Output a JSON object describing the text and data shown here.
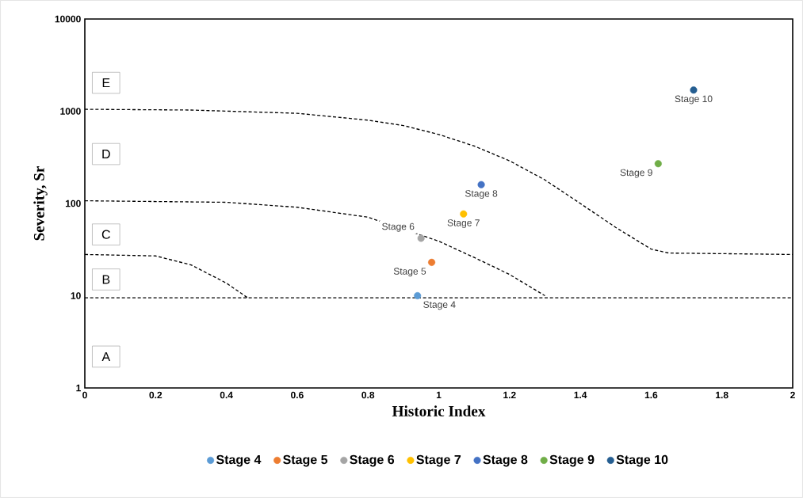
{
  "chart_data": {
    "type": "scatter",
    "xlabel": "Historic Index",
    "ylabel": "Severity, Sr",
    "xlim": [
      0,
      2
    ],
    "ylim": [
      1,
      10000
    ],
    "log": "y",
    "xticks": [
      0,
      0.2,
      0.4,
      0.6,
      0.8,
      1,
      1.2,
      1.4,
      1.6,
      1.8,
      2
    ],
    "yticks": [
      1,
      10,
      100,
      1000,
      10000
    ],
    "grid": false,
    "legend": "bottom",
    "marker": "circle",
    "series": [
      {
        "name": "Stage 4",
        "color": "#5b9bd5",
        "x": [
          0.94
        ],
        "values": [
          10
        ]
      },
      {
        "name": "Stage 5",
        "color": "#ed7d31",
        "x": [
          0.98
        ],
        "values": [
          23
        ]
      },
      {
        "name": "Stage 6",
        "color": "#a5a5a5",
        "x": [
          0.95
        ],
        "values": [
          42
        ]
      },
      {
        "name": "Stage 7",
        "color": "#ffc000",
        "x": [
          1.07
        ],
        "values": [
          77
        ]
      },
      {
        "name": "Stage 8",
        "color": "#4472c4",
        "x": [
          1.12
        ],
        "values": [
          160
        ]
      },
      {
        "name": "Stage 9",
        "color": "#70ad47",
        "x": [
          1.62
        ],
        "values": [
          270
        ]
      },
      {
        "name": "Stage 10",
        "color": "#255e91",
        "x": [
          1.72
        ],
        "values": [
          1700
        ]
      },
      {
        "type": "line",
        "color": "#000000",
        "line_style": "dashed",
        "marker": "none",
        "x": [
          0,
          0.3,
          0.6,
          0.8,
          0.9,
          1.0,
          1.1,
          1.2,
          1.3,
          1.4,
          1.5,
          1.6,
          1.65,
          2.0
        ],
        "values": [
          1050,
          1030,
          950,
          800,
          700,
          560,
          420,
          290,
          180,
          100,
          55,
          32,
          29,
          28
        ]
      },
      {
        "type": "line",
        "color": "#000000",
        "line_style": "dashed",
        "marker": "none",
        "x": [
          0,
          0.4,
          0.6,
          0.8,
          1.0,
          1.1,
          1.2,
          1.3
        ],
        "values": [
          107,
          103,
          91,
          71,
          39,
          26,
          17,
          10
        ]
      },
      {
        "type": "line",
        "color": "#000000",
        "line_style": "dashed",
        "marker": "none",
        "x": [
          0,
          0.2,
          0.3,
          0.4,
          0.46
        ],
        "values": [
          28,
          27,
          21.6,
          13.7,
          9.5
        ]
      },
      {
        "type": "line",
        "color": "#000000",
        "line_style": "dashed",
        "marker": "none",
        "x": [
          0,
          2
        ],
        "values": [
          9.5,
          9.5
        ]
      }
    ],
    "annotations": [
      "E",
      "D",
      "C",
      "B",
      "A"
    ]
  }
}
